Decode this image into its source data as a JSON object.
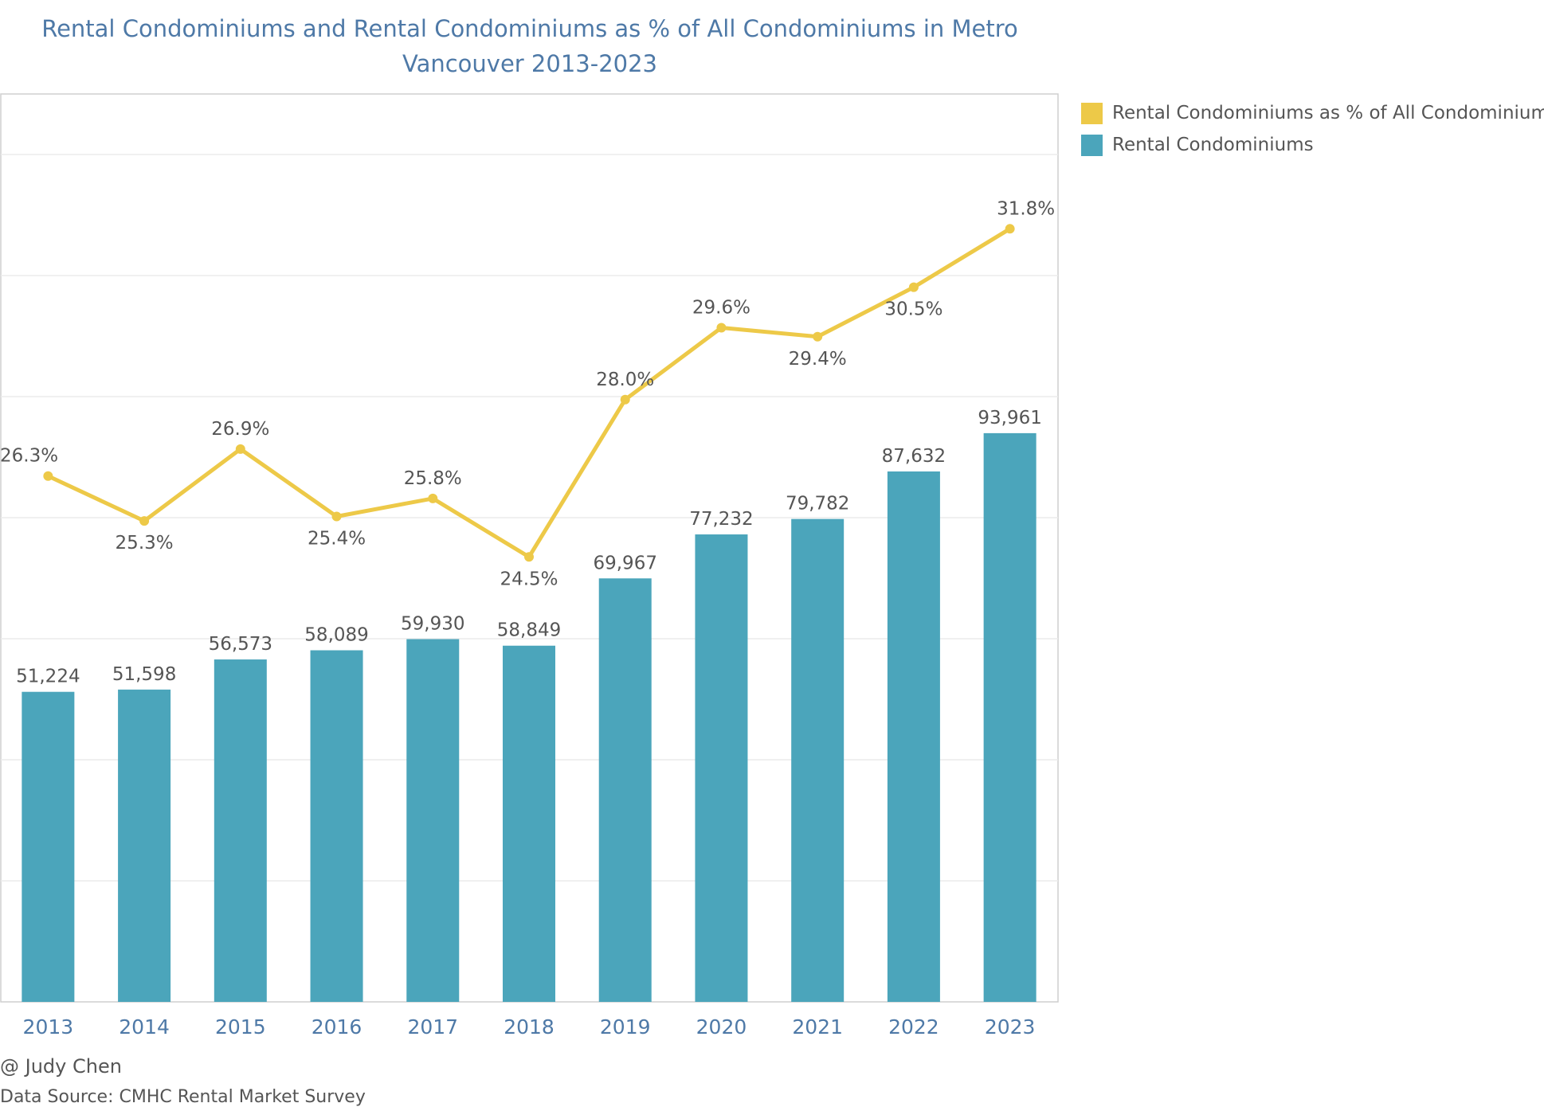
{
  "title": {
    "line1": "Rental Condominiums and Rental Condominiums as % of All Condominiums in Metro",
    "line2": "Vancouver 2013-2023"
  },
  "legend": [
    {
      "label": "Rental Condominiums as % of All Condominiums",
      "color": "#edc948"
    },
    {
      "label": "Rental Condominiums",
      "color": "#4ba5bb"
    }
  ],
  "footer": {
    "credit": "@ Judy Chen",
    "source": "Data Source: CMHC Rental Market Survey"
  },
  "chart_data": {
    "type": "bar+line",
    "categories": [
      "2013",
      "2014",
      "2015",
      "2016",
      "2017",
      "2018",
      "2019",
      "2020",
      "2021",
      "2022",
      "2023"
    ],
    "series": [
      {
        "name": "Rental Condominiums",
        "type": "bar",
        "color": "#4ba5bb",
        "values": [
          51224,
          51598,
          56573,
          58089,
          59930,
          58849,
          69967,
          77232,
          79782,
          87632,
          93961
        ],
        "labels": [
          "51,224",
          "51,598",
          "56,573",
          "58,089",
          "59,930",
          "58,849",
          "69,967",
          "77,232",
          "79,782",
          "87,632",
          "93,961"
        ],
        "ylim": [
          0,
          150000
        ]
      },
      {
        "name": "Rental Condominiums as % of All Condominiums",
        "type": "line",
        "color": "#edc948",
        "values": [
          26.3,
          25.3,
          26.9,
          25.4,
          25.8,
          24.5,
          28.0,
          29.6,
          29.4,
          30.5,
          31.8
        ],
        "labels": [
          "26.3%",
          "25.3%",
          "26.9%",
          "25.4%",
          "25.8%",
          "24.5%",
          "28.0%",
          "29.6%",
          "29.4%",
          "30.5%",
          "31.8%"
        ],
        "label_position": [
          "above",
          "below",
          "above",
          "below",
          "above",
          "below",
          "above",
          "above",
          "below",
          "below",
          "above"
        ],
        "ylim": [
          14.6,
          34.8
        ]
      }
    ],
    "grid": true,
    "xlabel": "",
    "ylabel": ""
  }
}
